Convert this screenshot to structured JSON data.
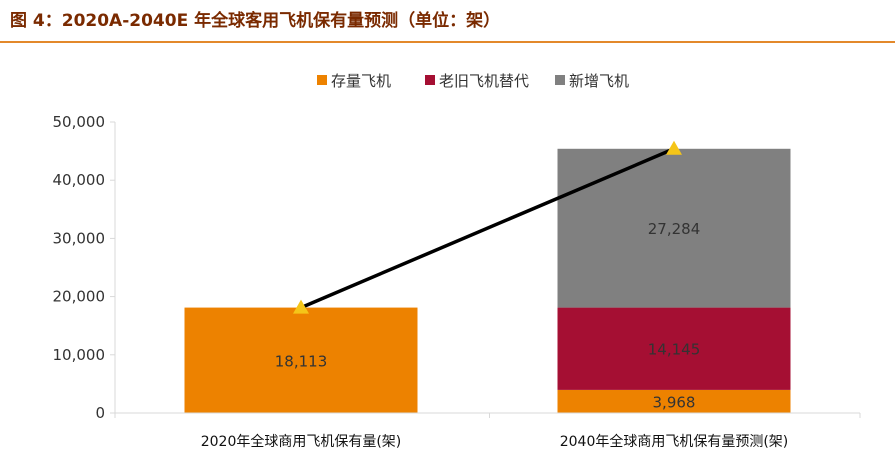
{
  "figure": {
    "title": "图 4：2020A-2040E 年全球客用飞机保有量预测（单位：架）"
  },
  "chart_data": {
    "type": "bar",
    "stacked": true,
    "categories": [
      "2020年全球商用飞机保有量(架)",
      "2040年全球商用飞机保有量预测(架)"
    ],
    "series": [
      {
        "name": "存量飞机",
        "color": "#ed8200",
        "values": [
          18113,
          3968
        ],
        "labels": [
          "18,113",
          "3,968"
        ]
      },
      {
        "name": "老旧飞机替代",
        "color": "#a50f33",
        "values": [
          0,
          14145
        ],
        "labels": [
          "",
          "14,145"
        ]
      },
      {
        "name": "新增飞机",
        "color": "#808080",
        "values": [
          0,
          27284
        ],
        "labels": [
          "",
          "27,284"
        ]
      }
    ],
    "totals_line": {
      "values": [
        18113,
        45397
      ],
      "line_color": "#000000",
      "marker": "triangle",
      "marker_color": "#f5c518"
    },
    "ylim": [
      0,
      50000
    ],
    "yticks": [
      0,
      10000,
      20000,
      30000,
      40000,
      50000
    ],
    "ytick_labels": [
      "0",
      "10,000",
      "20,000",
      "30,000",
      "40,000",
      "50,000"
    ],
    "legend_position": "top-center",
    "grid": false
  }
}
